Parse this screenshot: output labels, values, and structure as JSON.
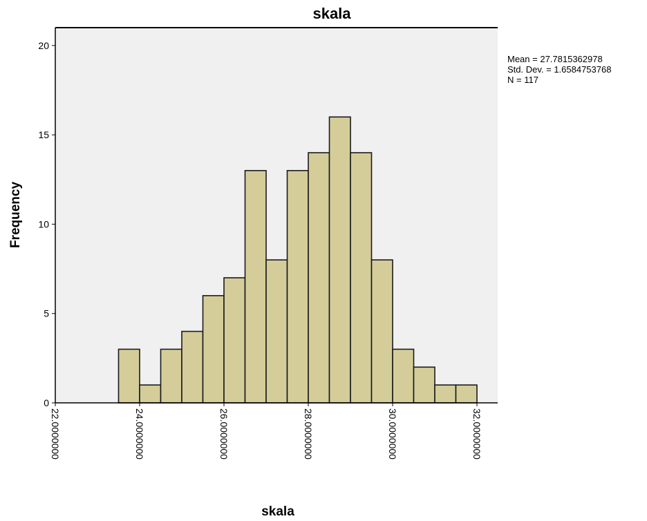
{
  "chart_data": {
    "type": "bar",
    "title": "skala",
    "xlabel": "skala",
    "ylabel": "Frequency",
    "xlim": [
      22.0,
      32.0
    ],
    "ylim": [
      0,
      21
    ],
    "bin_width": 0.5,
    "bins": [
      {
        "start": 23.5,
        "end": 24.0,
        "count": 3
      },
      {
        "start": 24.0,
        "end": 24.5,
        "count": 1
      },
      {
        "start": 24.5,
        "end": 25.0,
        "count": 3
      },
      {
        "start": 25.0,
        "end": 25.5,
        "count": 4
      },
      {
        "start": 25.5,
        "end": 26.0,
        "count": 6
      },
      {
        "start": 26.0,
        "end": 26.5,
        "count": 7
      },
      {
        "start": 26.5,
        "end": 27.0,
        "count": 13
      },
      {
        "start": 27.0,
        "end": 27.5,
        "count": 8
      },
      {
        "start": 27.5,
        "end": 28.0,
        "count": 13
      },
      {
        "start": 28.0,
        "end": 28.5,
        "count": 14
      },
      {
        "start": 28.5,
        "end": 29.0,
        "count": 16
      },
      {
        "start": 29.0,
        "end": 29.5,
        "count": 14
      },
      {
        "start": 29.5,
        "end": 30.0,
        "count": 8
      },
      {
        "start": 30.0,
        "end": 30.5,
        "count": 3
      },
      {
        "start": 30.5,
        "end": 31.0,
        "count": 2
      },
      {
        "start": 31.0,
        "end": 31.5,
        "count": 1
      },
      {
        "start": 31.5,
        "end": 32.0,
        "count": 1
      }
    ],
    "x_ticks": [
      {
        "value": 22.0,
        "label": "22.0000000"
      },
      {
        "value": 24.0,
        "label": "24.0000000"
      },
      {
        "value": 26.0,
        "label": "26.0000000"
      },
      {
        "value": 28.0,
        "label": "28.0000000"
      },
      {
        "value": 30.0,
        "label": "30.0000000"
      },
      {
        "value": 32.0,
        "label": "32.0000000"
      }
    ],
    "y_ticks": [
      {
        "value": 0,
        "label": "0"
      },
      {
        "value": 5,
        "label": "5"
      },
      {
        "value": 10,
        "label": "10"
      },
      {
        "value": 15,
        "label": "15"
      },
      {
        "value": 20,
        "label": "20"
      }
    ],
    "stats": [
      "Mean = 27.7815362978",
      "Std. Dev. = 1.6584753768",
      "N = 117"
    ],
    "grid": false,
    "colors": {
      "bar_fill": "#d4cd9a",
      "bar_stroke": "#1a1a1a",
      "plot_background": "#f0f0f0",
      "frame": "#000000"
    }
  }
}
